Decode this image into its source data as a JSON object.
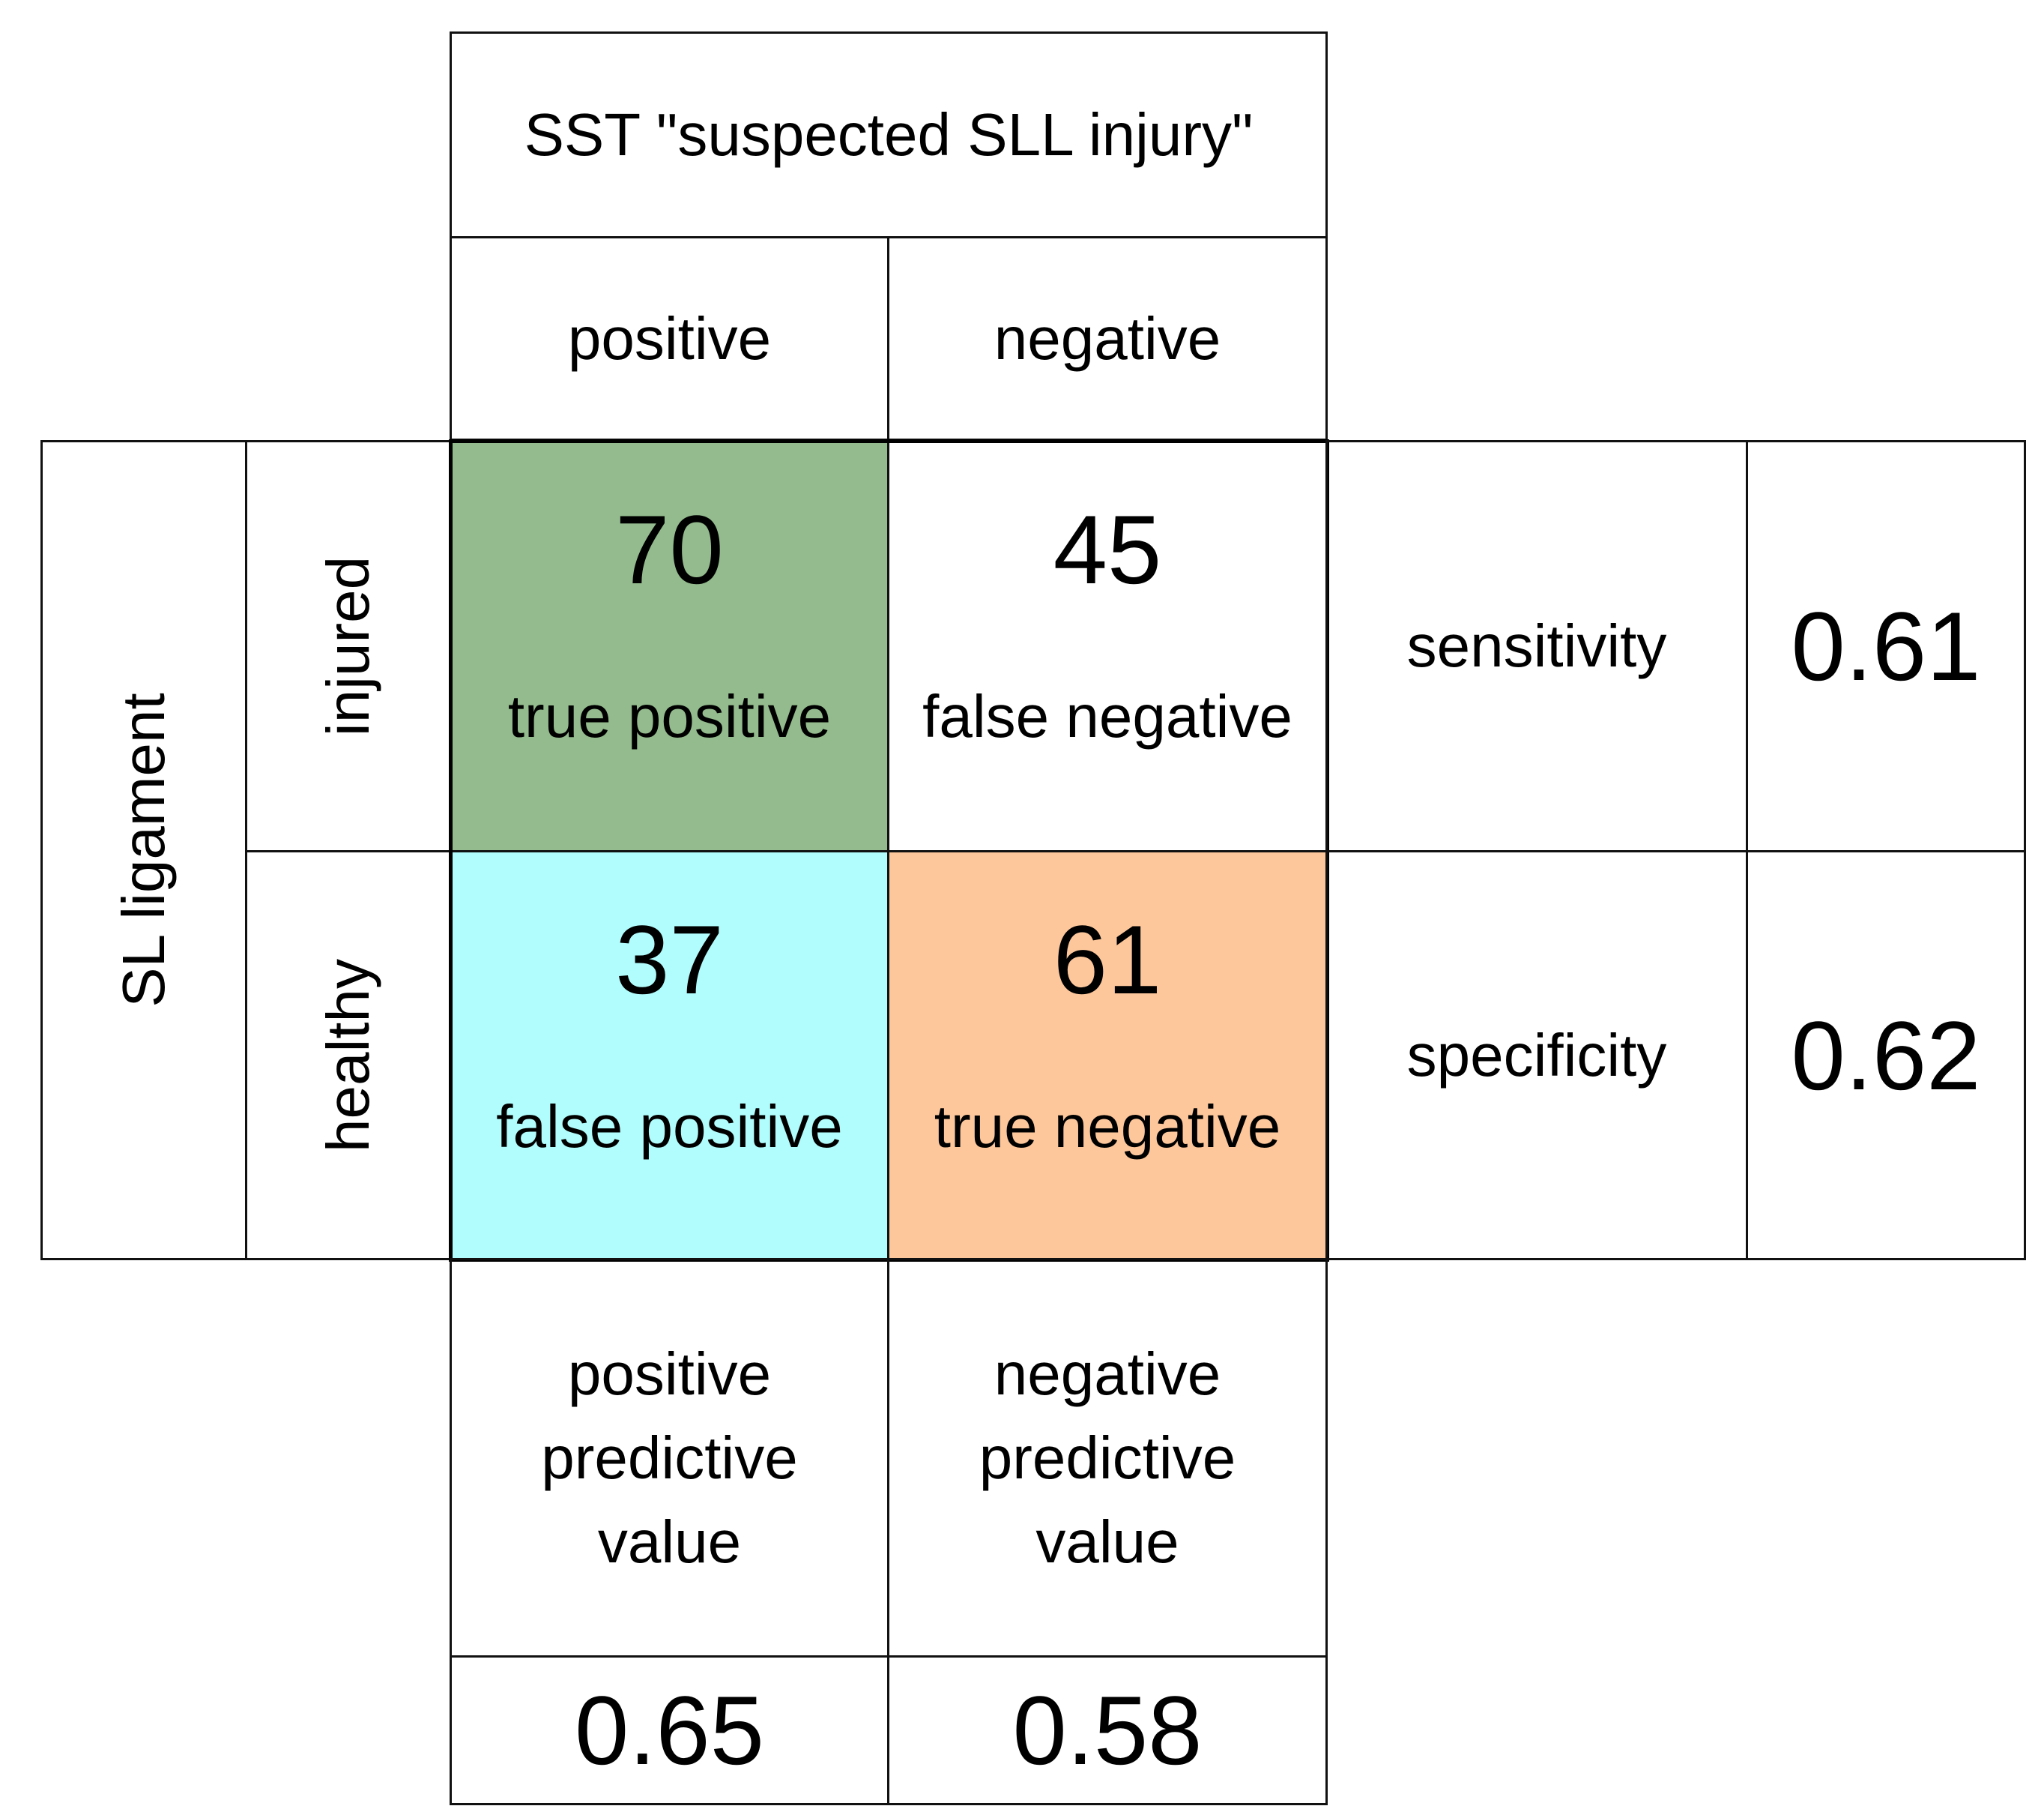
{
  "header": {
    "title": "SST \"suspected SLL injury\"",
    "col_positive": "positive",
    "col_negative": "negative"
  },
  "rows": {
    "group_label": "SL ligament",
    "row_injured": "injured",
    "row_healthy": "healthy"
  },
  "matrix": {
    "tp": {
      "value": "70",
      "label": "true positive",
      "color": "#93bb8d"
    },
    "fn": {
      "value": "45",
      "label": "false negative",
      "color": "#ffffff"
    },
    "fp": {
      "value": "37",
      "label": "false positive",
      "color": "#b1fcfc"
    },
    "tn": {
      "value": "61",
      "label": "true negative",
      "color": "#fdc79b"
    }
  },
  "metrics": {
    "sensitivity_label": "sensitivity",
    "sensitivity_value": "0.61",
    "specificity_label": "specificity",
    "specificity_value": "0.62",
    "ppv_label_1": "positive",
    "ppv_label_2": "predictive",
    "ppv_label_3": "value",
    "ppv_value": "0.65",
    "npv_label_1": "negative",
    "npv_label_2": "predictive",
    "npv_label_3": "value",
    "npv_value": "0.58"
  }
}
